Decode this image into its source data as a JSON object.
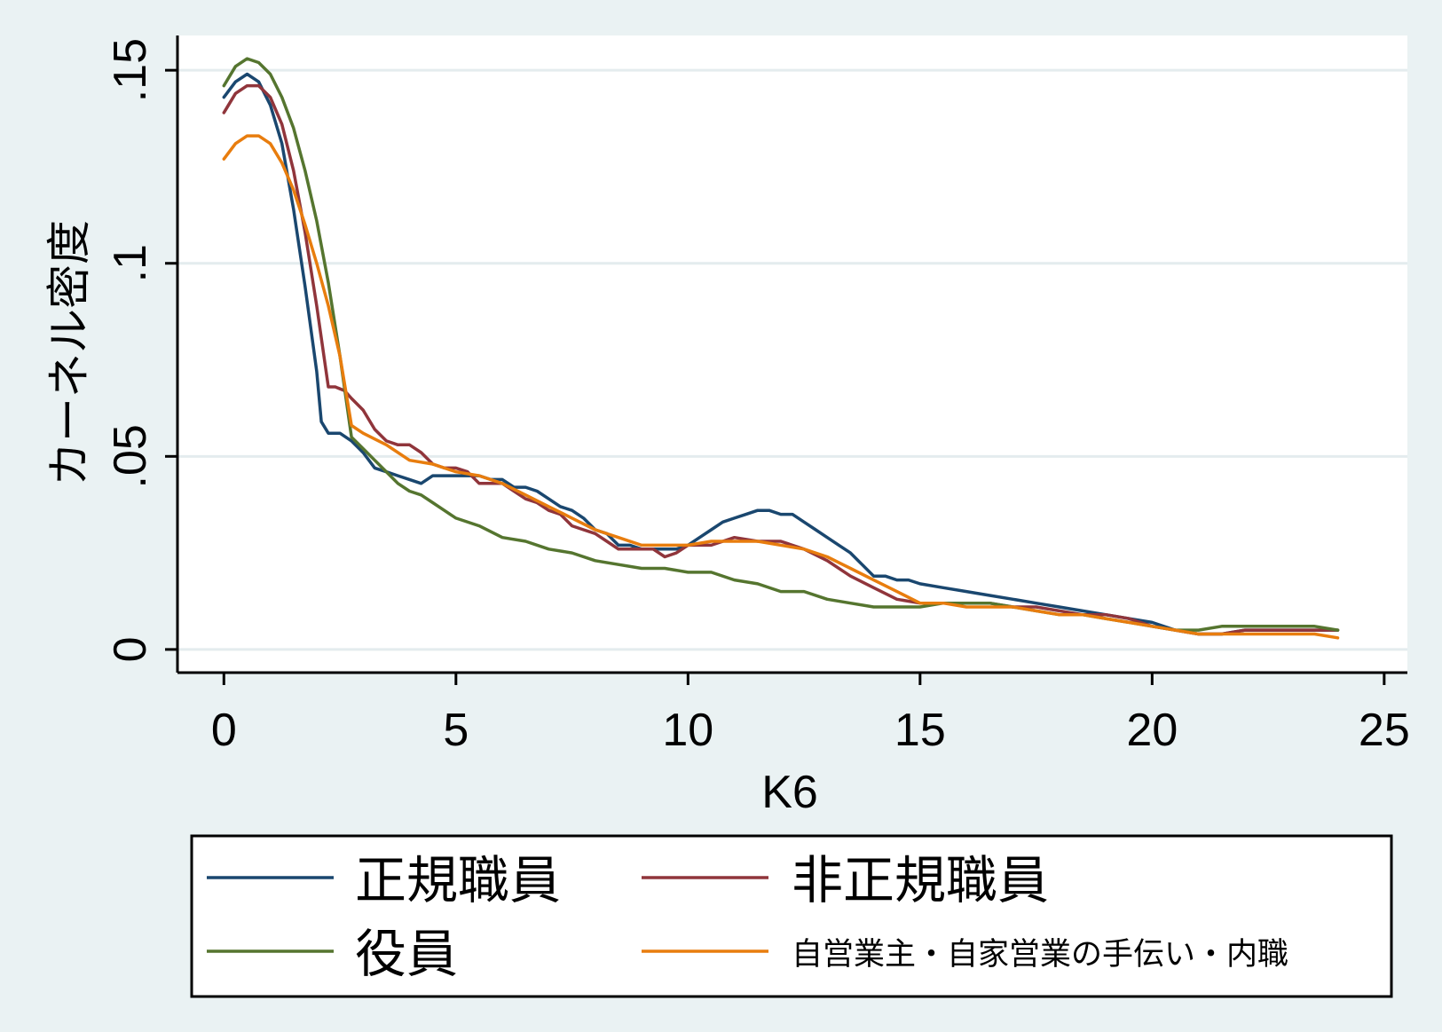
{
  "chart_data": {
    "type": "line",
    "title": "",
    "xlabel": "K6",
    "ylabel": "カーネル密度",
    "xlim": [
      -1,
      25.5
    ],
    "ylim": [
      -0.006,
      0.159
    ],
    "xticks": [
      0,
      5,
      10,
      15,
      20,
      25
    ],
    "xtick_labels": [
      "0",
      "5",
      "10",
      "15",
      "20",
      "25"
    ],
    "yticks": [
      0,
      0.05,
      0.1,
      0.15
    ],
    "ytick_labels": [
      "0",
      ".05",
      ".1",
      ".15"
    ],
    "grid": true,
    "legend_position": "bottom",
    "series": [
      {
        "name": "正規職員",
        "color": "#1a476f",
        "x": [
          0,
          0.25,
          0.5,
          0.75,
          1,
          1.25,
          1.5,
          1.75,
          2,
          2.1,
          2.25,
          2.5,
          2.75,
          3,
          3.25,
          3.5,
          3.75,
          4,
          4.25,
          4.5,
          4.75,
          5,
          5.25,
          5.5,
          5.75,
          6,
          6.25,
          6.5,
          6.75,
          7,
          7.25,
          7.5,
          7.75,
          8,
          8.25,
          8.5,
          8.75,
          9,
          9.25,
          9.5,
          9.75,
          10,
          10.25,
          10.5,
          10.75,
          11,
          11.25,
          11.5,
          11.75,
          12,
          12.25,
          12.5,
          12.75,
          13,
          13.25,
          13.5,
          13.75,
          14,
          14.25,
          14.5,
          14.75,
          15,
          15.5,
          16,
          16.5,
          17,
          17.5,
          18,
          18.5,
          19,
          19.5,
          20,
          20.5,
          21,
          21.5,
          22,
          22.5,
          23,
          23.5,
          24
        ],
        "y": [
          0.143,
          0.147,
          0.149,
          0.147,
          0.141,
          0.131,
          0.114,
          0.094,
          0.072,
          0.059,
          0.056,
          0.056,
          0.054,
          0.051,
          0.047,
          0.046,
          0.045,
          0.044,
          0.043,
          0.045,
          0.045,
          0.045,
          0.045,
          0.045,
          0.044,
          0.044,
          0.042,
          0.042,
          0.041,
          0.039,
          0.037,
          0.036,
          0.034,
          0.031,
          0.03,
          0.027,
          0.027,
          0.026,
          0.026,
          0.026,
          0.026,
          0.027,
          0.029,
          0.031,
          0.033,
          0.034,
          0.035,
          0.036,
          0.036,
          0.035,
          0.035,
          0.033,
          0.031,
          0.029,
          0.027,
          0.025,
          0.022,
          0.019,
          0.019,
          0.018,
          0.018,
          0.017,
          0.016,
          0.015,
          0.014,
          0.013,
          0.012,
          0.011,
          0.01,
          0.009,
          0.008,
          0.007,
          0.005,
          0.004,
          0.004,
          0.005,
          0.005,
          0.005,
          0.005,
          0.005
        ]
      },
      {
        "name": "非正規職員",
        "color": "#90353b",
        "x": [
          0,
          0.25,
          0.5,
          0.75,
          1,
          1.25,
          1.5,
          1.75,
          2,
          2.25,
          2.4,
          2.6,
          2.75,
          3,
          3.25,
          3.5,
          3.75,
          4,
          4.25,
          4.5,
          4.75,
          5,
          5.25,
          5.5,
          5.75,
          6,
          6.25,
          6.5,
          6.75,
          7,
          7.25,
          7.5,
          7.75,
          8,
          8.25,
          8.5,
          8.75,
          9,
          9.25,
          9.5,
          9.75,
          10,
          10.5,
          11,
          11.5,
          12,
          12.5,
          13,
          13.5,
          14,
          14.5,
          15,
          15.5,
          16,
          16.5,
          17,
          17.5,
          18,
          18.5,
          19,
          19.5,
          20,
          20.5,
          21,
          21.5,
          22,
          22.5,
          23,
          23.5,
          24
        ],
        "y": [
          0.139,
          0.144,
          0.146,
          0.146,
          0.143,
          0.136,
          0.124,
          0.108,
          0.089,
          0.068,
          0.068,
          0.067,
          0.065,
          0.062,
          0.057,
          0.054,
          0.053,
          0.053,
          0.051,
          0.048,
          0.047,
          0.047,
          0.046,
          0.043,
          0.043,
          0.043,
          0.041,
          0.039,
          0.038,
          0.036,
          0.035,
          0.032,
          0.031,
          0.03,
          0.028,
          0.026,
          0.026,
          0.026,
          0.026,
          0.024,
          0.025,
          0.027,
          0.027,
          0.029,
          0.028,
          0.028,
          0.026,
          0.023,
          0.019,
          0.016,
          0.013,
          0.012,
          0.012,
          0.012,
          0.012,
          0.011,
          0.011,
          0.01,
          0.009,
          0.009,
          0.008,
          0.006,
          0.005,
          0.004,
          0.004,
          0.005,
          0.005,
          0.005,
          0.005,
          0.005
        ]
      },
      {
        "name": "役員",
        "color": "#55752f",
        "x": [
          0,
          0.25,
          0.5,
          0.75,
          1,
          1.25,
          1.5,
          1.75,
          2,
          2.25,
          2.5,
          2.75,
          3,
          3.25,
          3.5,
          3.75,
          4,
          4.25,
          4.5,
          4.75,
          5,
          5.5,
          6,
          6.5,
          7,
          7.5,
          8,
          8.5,
          9,
          9.5,
          10,
          10.5,
          11,
          11.5,
          12,
          12.5,
          13,
          13.5,
          14,
          14.5,
          15,
          15.5,
          16,
          16.5,
          17,
          17.5,
          18,
          18.5,
          19,
          19.5,
          20,
          20.5,
          21,
          21.5,
          22,
          22.5,
          23,
          23.5,
          24
        ],
        "y": [
          0.146,
          0.151,
          0.153,
          0.152,
          0.149,
          0.143,
          0.135,
          0.124,
          0.111,
          0.095,
          0.076,
          0.055,
          0.052,
          0.049,
          0.046,
          0.043,
          0.041,
          0.04,
          0.038,
          0.036,
          0.034,
          0.032,
          0.029,
          0.028,
          0.026,
          0.025,
          0.023,
          0.022,
          0.021,
          0.021,
          0.02,
          0.02,
          0.018,
          0.017,
          0.015,
          0.015,
          0.013,
          0.012,
          0.011,
          0.011,
          0.011,
          0.012,
          0.012,
          0.012,
          0.011,
          0.01,
          0.009,
          0.009,
          0.008,
          0.007,
          0.006,
          0.005,
          0.005,
          0.006,
          0.006,
          0.006,
          0.006,
          0.006,
          0.005
        ]
      },
      {
        "name": "自営業主・自家営業の手伝い・内職",
        "color": "#e87d0e",
        "x": [
          0,
          0.25,
          0.5,
          0.75,
          1,
          1.25,
          1.5,
          1.75,
          2,
          2.25,
          2.5,
          2.75,
          3,
          3.5,
          4,
          4.5,
          5,
          5.5,
          6,
          6.5,
          7,
          7.5,
          8,
          8.5,
          9,
          9.5,
          10,
          10.5,
          11,
          11.5,
          12,
          12.5,
          13,
          13.5,
          14,
          14.5,
          15,
          15.5,
          16,
          16.5,
          17,
          17.5,
          18,
          18.5,
          19,
          19.5,
          20,
          20.5,
          21,
          21.5,
          22,
          22.5,
          23,
          23.5,
          24
        ],
        "y": [
          0.127,
          0.131,
          0.133,
          0.133,
          0.131,
          0.126,
          0.119,
          0.11,
          0.1,
          0.089,
          0.076,
          0.058,
          0.056,
          0.053,
          0.049,
          0.048,
          0.046,
          0.045,
          0.043,
          0.04,
          0.037,
          0.034,
          0.031,
          0.029,
          0.027,
          0.027,
          0.027,
          0.028,
          0.028,
          0.028,
          0.027,
          0.026,
          0.024,
          0.021,
          0.018,
          0.015,
          0.012,
          0.012,
          0.011,
          0.011,
          0.011,
          0.01,
          0.009,
          0.009,
          0.008,
          0.007,
          0.006,
          0.005,
          0.004,
          0.004,
          0.004,
          0.004,
          0.004,
          0.004,
          0.003
        ]
      }
    ]
  }
}
